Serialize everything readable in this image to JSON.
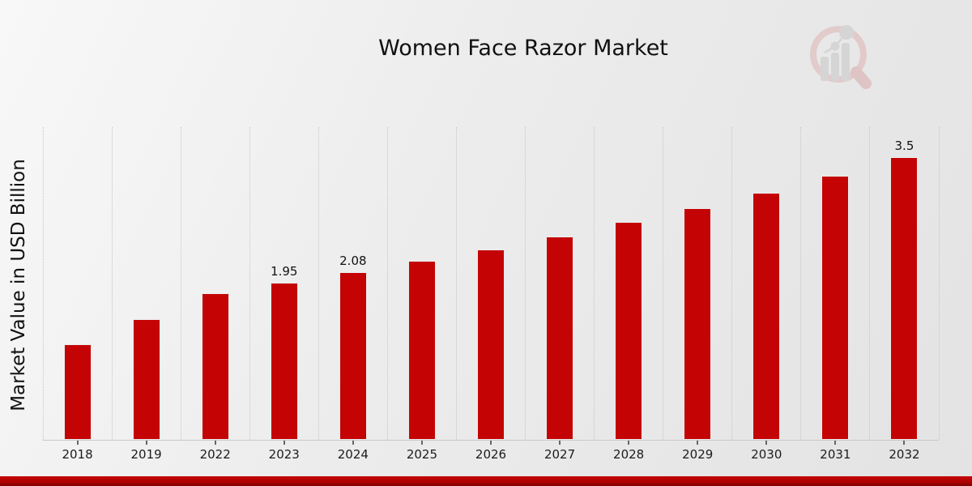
{
  "title": "Women Face Razor Market",
  "logo": {
    "name": "market-research-magnifier-logo"
  },
  "chart_data": {
    "type": "bar",
    "title": "Women Face Razor Market",
    "xlabel": "",
    "ylabel": "Market Value in USD Billion",
    "categories": [
      "2018",
      "2019",
      "2022",
      "2023",
      "2024",
      "2025",
      "2026",
      "2027",
      "2028",
      "2029",
      "2030",
      "2031",
      "2032"
    ],
    "values": [
      1.18,
      1.49,
      1.81,
      1.95,
      2.08,
      2.22,
      2.36,
      2.52,
      2.7,
      2.87,
      3.06,
      3.27,
      3.5
    ],
    "value_labels": {
      "2023": "1.95",
      "2024": "2.08",
      "2032": "3.5"
    },
    "ylim": [
      0,
      3.87
    ],
    "grid": "vertical-dotted",
    "legend": "none",
    "bar_color": "#c40404",
    "gridline_color": "#c6c6c6",
    "axis_line_color": "#c9c9c9",
    "text_color": "#111111",
    "accent_band_color": "#b00202"
  }
}
